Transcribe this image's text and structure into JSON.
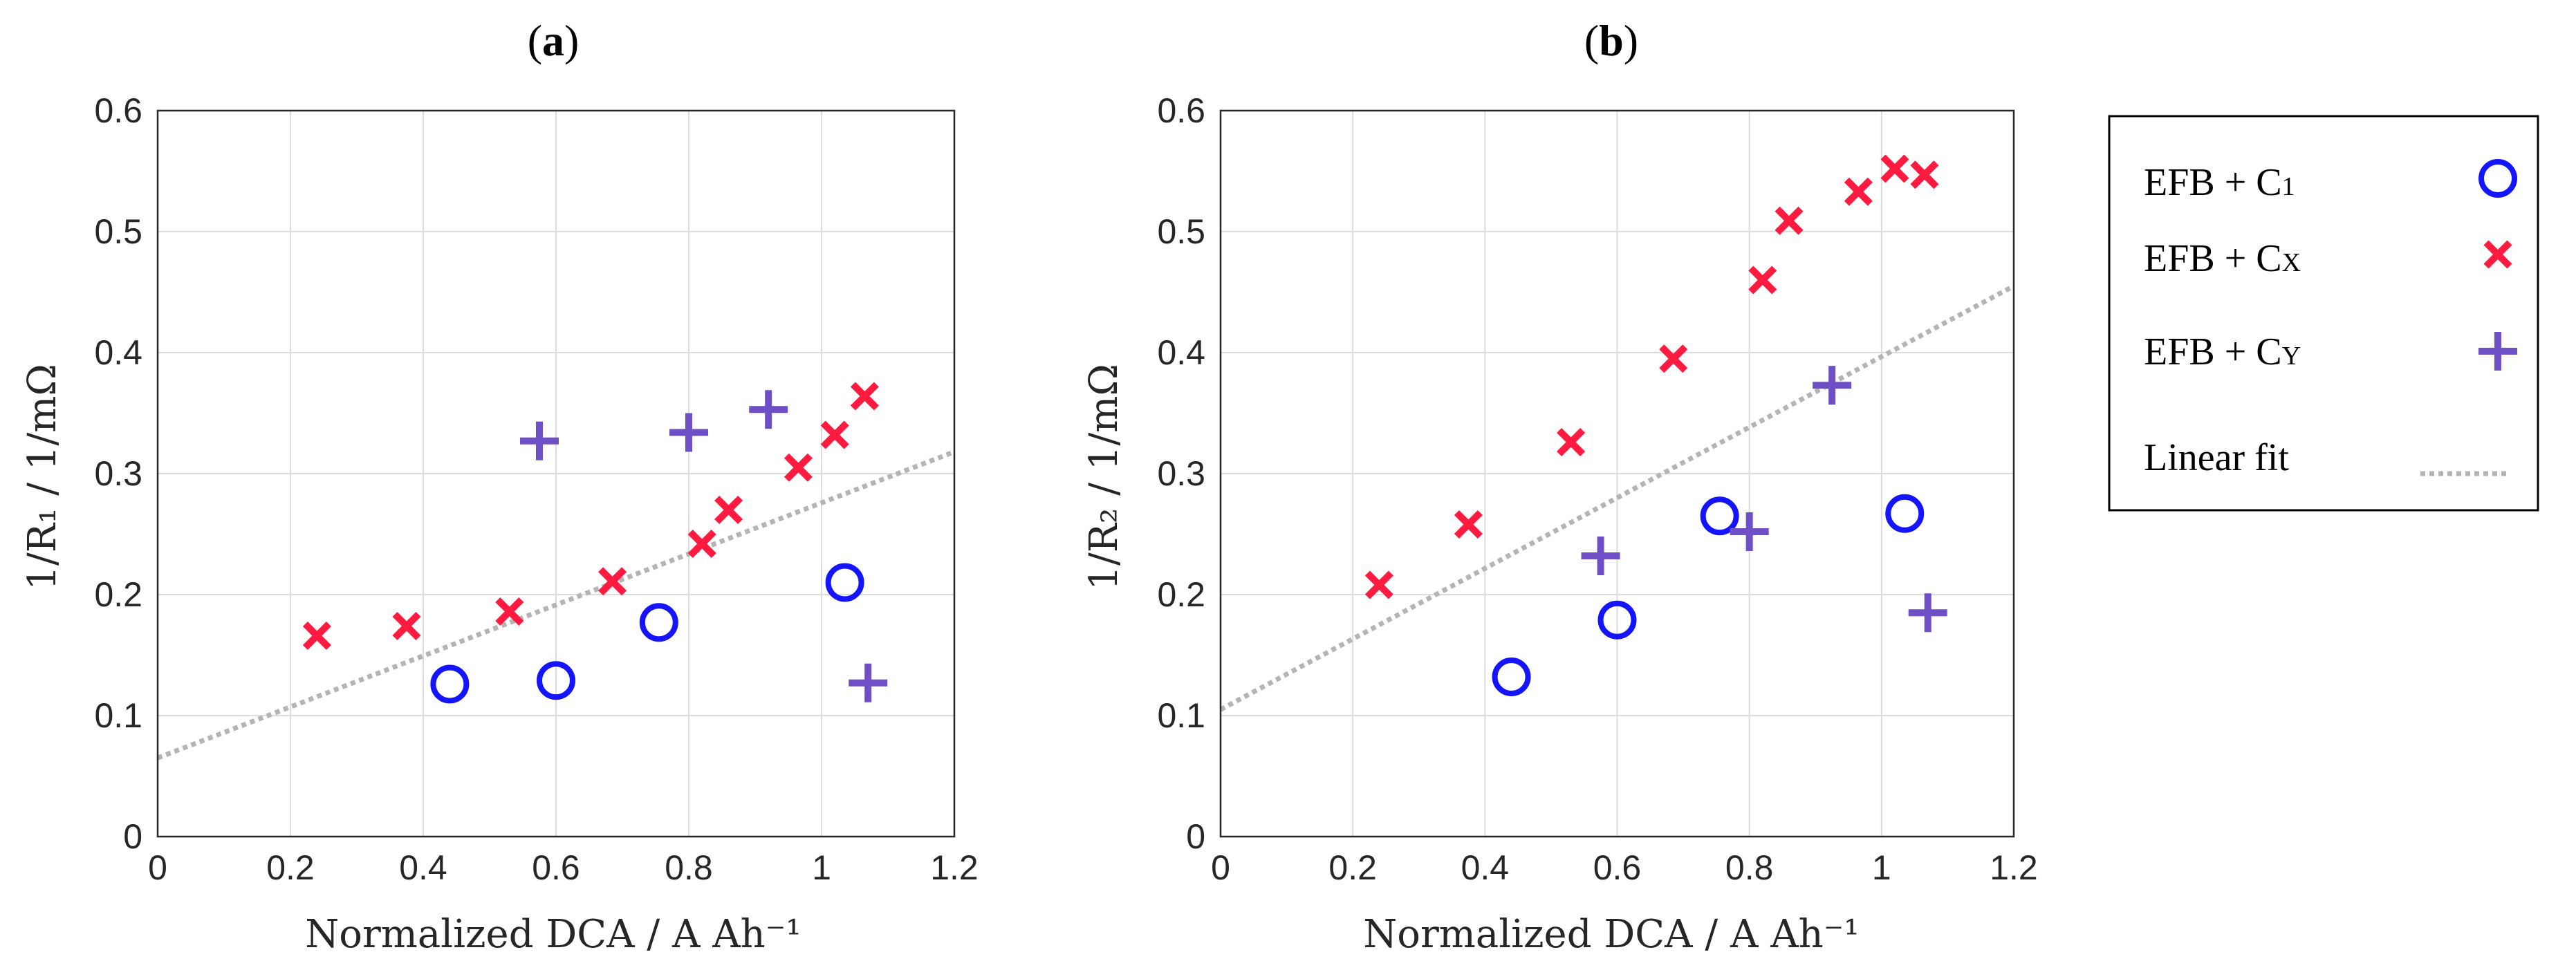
{
  "chart_data": [
    {
      "type": "scatter",
      "title": "(a)",
      "title_letter": "a",
      "xlabel": "Normalized DCA / A Ah⁻¹",
      "ylabel": "1/R₁ / 1/mΩ",
      "xlim": [
        0,
        1.2
      ],
      "ylim": [
        0,
        0.6
      ],
      "xticks": [
        "0",
        "0.2",
        "0.4",
        "0.6",
        "0.8",
        "1",
        "1.2"
      ],
      "yticks": [
        "0",
        "0.1",
        "0.2",
        "0.3",
        "0.4",
        "0.5",
        "0.6"
      ],
      "grid": true,
      "series": [
        {
          "name": "EFB + C1",
          "marker": "circle",
          "color": "#1414ff",
          "x": [
            0.44,
            0.6,
            0.755,
            1.035
          ],
          "y": [
            0.126,
            0.129,
            0.177,
            0.21
          ]
        },
        {
          "name": "EFB + CX",
          "marker": "x",
          "color": "#ff1a40",
          "x": [
            0.24,
            0.375,
            0.53,
            0.685,
            0.82,
            0.86,
            0.965,
            1.02,
            1.065
          ],
          "y": [
            0.166,
            0.174,
            0.186,
            0.211,
            0.242,
            0.27,
            0.305,
            0.332,
            0.364
          ]
        },
        {
          "name": "EFB + CY",
          "marker": "plus",
          "color": "#6f4fc6",
          "x": [
            0.575,
            0.8,
            0.92,
            1.07
          ],
          "y": [
            0.327,
            0.334,
            0.353,
            0.127
          ]
        }
      ],
      "fit": {
        "name": "Linear fit",
        "x": [
          0,
          1.2
        ],
        "y": [
          0.065,
          0.318
        ]
      }
    },
    {
      "type": "scatter",
      "title": "(b)",
      "title_letter": "b",
      "xlabel": "Normalized DCA / A Ah⁻¹",
      "ylabel": "1/R₂ / 1/mΩ",
      "xlim": [
        0,
        1.2
      ],
      "ylim": [
        0,
        0.6
      ],
      "xticks": [
        "0",
        "0.2",
        "0.4",
        "0.6",
        "0.8",
        "1",
        "1.2"
      ],
      "yticks": [
        "0",
        "0.1",
        "0.2",
        "0.3",
        "0.4",
        "0.5",
        "0.6"
      ],
      "grid": true,
      "series": [
        {
          "name": "EFB + C1",
          "marker": "circle",
          "color": "#1414ff",
          "x": [
            0.44,
            0.6,
            0.755,
            1.035
          ],
          "y": [
            0.132,
            0.179,
            0.265,
            0.267
          ]
        },
        {
          "name": "EFB + CX",
          "marker": "x",
          "color": "#ff1a40",
          "x": [
            0.24,
            0.375,
            0.53,
            0.685,
            0.82,
            0.86,
            0.965,
            1.02,
            1.065
          ],
          "y": [
            0.208,
            0.258,
            0.326,
            0.395,
            0.46,
            0.509,
            0.533,
            0.552,
            0.547
          ]
        },
        {
          "name": "EFB + CY",
          "marker": "plus",
          "color": "#6f4fc6",
          "x": [
            0.575,
            0.8,
            0.925,
            1.07
          ],
          "y": [
            0.232,
            0.252,
            0.373,
            0.185
          ]
        }
      ],
      "fit": {
        "name": "Linear fit",
        "x": [
          0,
          1.2
        ],
        "y": [
          0.105,
          0.455
        ]
      }
    }
  ],
  "legend": {
    "placement": "right",
    "items": [
      {
        "base": "EFB + C",
        "sub": "1",
        "marker": "circle"
      },
      {
        "base": "EFB + C",
        "sub": "X",
        "marker": "x"
      },
      {
        "base": "EFB + C",
        "sub": "Y",
        "marker": "plus"
      },
      {
        "base": "Linear fit",
        "sub": "",
        "marker": "line"
      }
    ]
  },
  "colors": {
    "circle": "#1414ff",
    "x": "#ff1a40",
    "plus": "#6f4fc6",
    "fit": "#b4b4b4",
    "grid": "#dcdcdc",
    "axis": "#262626"
  }
}
